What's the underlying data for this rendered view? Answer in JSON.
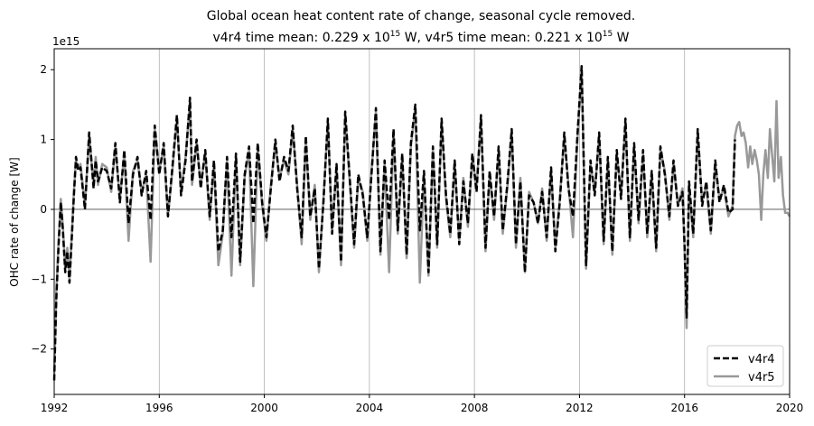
{
  "chart_data": {
    "type": "line",
    "title_line1": "Global ocean heat content rate of change, seasonal cycle removed.",
    "title_line2": {
      "pre": "v4r4 time mean: 0.229 x 10",
      "exp1": "15",
      "mid": " W, v4r5 time mean: 0.221 x 10",
      "exp2": "15",
      "post": " W"
    },
    "ylabel": "OHC rate of change [W]",
    "y_offset_label": "1e15",
    "xlim": [
      1992,
      2020
    ],
    "ylim": [
      -2.65,
      2.3
    ],
    "xticks": [
      1992,
      1996,
      2000,
      2004,
      2008,
      2012,
      2016,
      2020
    ],
    "xtick_labels": [
      "1992",
      "1996",
      "2000",
      "2004",
      "2008",
      "2012",
      "2016",
      "2020"
    ],
    "yticks": [
      -2,
      -1,
      0,
      1,
      2
    ],
    "ytick_labels": [
      "−2",
      "−1",
      "0",
      "1",
      "2"
    ],
    "vertical_grid": true,
    "zero_line": true,
    "legend_position": "bottom-right",
    "series": [
      {
        "name": "v4r4",
        "color": "#000000",
        "style": "dashed",
        "x": [
          1992.0,
          1992.08,
          1992.17,
          1992.25,
          1992.33,
          1992.42,
          1992.5,
          1992.58,
          1992.67,
          1992.75,
          1992.83,
          1992.92,
          1993.0,
          1993.17,
          1993.33,
          1993.5,
          1993.58,
          1993.67,
          1993.83,
          1994.0,
          1994.17,
          1994.33,
          1994.5,
          1994.67,
          1994.83,
          1995.0,
          1995.17,
          1995.33,
          1995.5,
          1995.67,
          1995.83,
          1996.0,
          1996.17,
          1996.33,
          1996.5,
          1996.67,
          1996.83,
          1997.0,
          1997.17,
          1997.25,
          1997.42,
          1997.58,
          1997.75,
          1997.92,
          1998.08,
          1998.25,
          1998.42,
          1998.58,
          1998.75,
          1998.92,
          1999.08,
          1999.25,
          1999.42,
          1999.58,
          1999.75,
          1999.92,
          2000.08,
          2000.25,
          2000.42,
          2000.58,
          2000.75,
          2000.92,
          2001.08,
          2001.25,
          2001.42,
          2001.58,
          2001.75,
          2001.92,
          2002.08,
          2002.25,
          2002.42,
          2002.58,
          2002.75,
          2002.92,
          2003.08,
          2003.25,
          2003.42,
          2003.58,
          2003.75,
          2003.92,
          2004.08,
          2004.25,
          2004.42,
          2004.58,
          2004.75,
          2004.92,
          2005.08,
          2005.25,
          2005.42,
          2005.58,
          2005.75,
          2005.92,
          2006.08,
          2006.25,
          2006.42,
          2006.58,
          2006.75,
          2006.92,
          2007.08,
          2007.25,
          2007.42,
          2007.58,
          2007.75,
          2007.92,
          2008.08,
          2008.25,
          2008.42,
          2008.58,
          2008.75,
          2008.92,
          2009.08,
          2009.25,
          2009.42,
          2009.58,
          2009.75,
          2009.92,
          2010.08,
          2010.25,
          2010.42,
          2010.58,
          2010.75,
          2010.92,
          2011.08,
          2011.25,
          2011.42,
          2011.58,
          2011.75,
          2011.92,
          2012.08,
          2012.25,
          2012.42,
          2012.58,
          2012.75,
          2012.92,
          2013.08,
          2013.25,
          2013.42,
          2013.58,
          2013.75,
          2013.92,
          2014.08,
          2014.25,
          2014.42,
          2014.58,
          2014.75,
          2014.92,
          2015.08,
          2015.25,
          2015.42,
          2015.58,
          2015.75,
          2015.92,
          2016.0,
          2016.08,
          2016.17,
          2016.33,
          2016.5,
          2016.67,
          2016.83,
          2017.0,
          2017.17,
          2017.33,
          2017.5,
          2017.67,
          2017.83,
          2017.92
        ],
        "y": [
          -2.45,
          -1.3,
          -0.5,
          0.1,
          -0.3,
          -0.9,
          -0.6,
          -1.05,
          -0.4,
          0.2,
          0.75,
          0.55,
          0.6,
          0.0,
          1.1,
          0.3,
          0.7,
          0.4,
          0.6,
          0.55,
          0.3,
          0.95,
          0.1,
          0.85,
          -0.2,
          0.5,
          0.75,
          0.2,
          0.55,
          -0.15,
          1.2,
          0.5,
          0.95,
          -0.1,
          0.6,
          1.35,
          0.2,
          0.7,
          1.6,
          0.4,
          1.0,
          0.3,
          0.85,
          -0.1,
          0.7,
          -0.6,
          -0.3,
          0.75,
          -0.4,
          0.8,
          -0.75,
          0.5,
          0.9,
          -0.2,
          0.95,
          0.1,
          -0.4,
          0.3,
          1.0,
          0.4,
          0.75,
          0.55,
          1.2,
          0.3,
          -0.4,
          1.05,
          -0.1,
          0.3,
          -0.85,
          0.1,
          1.3,
          -0.35,
          0.65,
          -0.75,
          1.4,
          0.45,
          -0.5,
          0.5,
          0.2,
          -0.4,
          0.5,
          1.45,
          -0.6,
          0.7,
          -0.15,
          1.15,
          -0.3,
          0.8,
          -0.65,
          0.95,
          1.5,
          -0.3,
          0.55,
          -0.9,
          0.9,
          -0.5,
          1.3,
          0.2,
          -0.35,
          0.7,
          -0.5,
          0.4,
          -0.2,
          0.8,
          0.25,
          1.35,
          -0.55,
          0.55,
          -0.1,
          0.9,
          -0.3,
          0.35,
          1.15,
          -0.5,
          0.4,
          -0.9,
          0.2,
          0.1,
          -0.2,
          0.25,
          -0.4,
          0.6,
          -0.6,
          0.1,
          1.1,
          0.3,
          -0.1,
          1.05,
          2.05,
          -0.8,
          0.7,
          0.2,
          1.1,
          -0.45,
          0.75,
          -0.6,
          0.85,
          0.15,
          1.3,
          -0.4,
          0.95,
          -0.15,
          0.85,
          -0.35,
          0.55,
          -0.55,
          0.9,
          0.5,
          -0.1,
          0.7,
          0.05,
          0.25,
          -0.5,
          -1.55,
          0.4,
          -0.35,
          1.15,
          0.05,
          0.4,
          -0.3,
          0.7,
          0.1,
          0.35,
          -0.05,
          0.0,
          1.0
        ]
      },
      {
        "name": "v4r5",
        "color": "#999999",
        "style": "solid",
        "x": [
          1992.0,
          1992.08,
          1992.17,
          1992.25,
          1992.33,
          1992.42,
          1992.5,
          1992.58,
          1992.67,
          1992.75,
          1992.83,
          1992.92,
          1993.0,
          1993.17,
          1993.33,
          1993.5,
          1993.58,
          1993.67,
          1993.83,
          1994.0,
          1994.17,
          1994.33,
          1994.5,
          1994.67,
          1994.83,
          1995.0,
          1995.17,
          1995.33,
          1995.5,
          1995.67,
          1995.83,
          1996.0,
          1996.17,
          1996.33,
          1996.5,
          1996.67,
          1996.83,
          1997.0,
          1997.17,
          1997.25,
          1997.42,
          1997.58,
          1997.75,
          1997.92,
          1998.08,
          1998.25,
          1998.42,
          1998.58,
          1998.75,
          1998.92,
          1999.08,
          1999.25,
          1999.42,
          1999.58,
          1999.75,
          1999.92,
          2000.08,
          2000.25,
          2000.42,
          2000.58,
          2000.75,
          2000.92,
          2001.08,
          2001.25,
          2001.42,
          2001.58,
          2001.75,
          2001.92,
          2002.08,
          2002.25,
          2002.42,
          2002.58,
          2002.75,
          2002.92,
          2003.08,
          2003.25,
          2003.42,
          2003.58,
          2003.75,
          2003.92,
          2004.08,
          2004.25,
          2004.42,
          2004.58,
          2004.75,
          2004.92,
          2005.08,
          2005.25,
          2005.42,
          2005.58,
          2005.75,
          2005.92,
          2006.08,
          2006.25,
          2006.42,
          2006.58,
          2006.75,
          2006.92,
          2007.08,
          2007.25,
          2007.42,
          2007.58,
          2007.75,
          2007.92,
          2008.08,
          2008.25,
          2008.42,
          2008.58,
          2008.75,
          2008.92,
          2009.08,
          2009.25,
          2009.42,
          2009.58,
          2009.75,
          2009.92,
          2010.08,
          2010.25,
          2010.42,
          2010.58,
          2010.75,
          2010.92,
          2011.08,
          2011.25,
          2011.42,
          2011.58,
          2011.75,
          2011.92,
          2012.08,
          2012.25,
          2012.42,
          2012.58,
          2012.75,
          2012.92,
          2013.08,
          2013.25,
          2013.42,
          2013.58,
          2013.75,
          2013.92,
          2014.08,
          2014.25,
          2014.42,
          2014.58,
          2014.75,
          2014.92,
          2015.08,
          2015.25,
          2015.42,
          2015.58,
          2015.75,
          2015.92,
          2016.0,
          2016.08,
          2016.17,
          2016.33,
          2016.5,
          2016.67,
          2016.83,
          2017.0,
          2017.17,
          2017.33,
          2017.5,
          2017.67,
          2017.83,
          2017.92,
          2018.0,
          2018.08,
          2018.17,
          2018.25,
          2018.33,
          2018.42,
          2018.5,
          2018.58,
          2018.67,
          2018.75,
          2018.83,
          2018.92,
          2019.0,
          2019.08,
          2019.17,
          2019.25,
          2019.33,
          2019.42,
          2019.5,
          2019.58,
          2019.67,
          2019.75,
          2019.83,
          2019.92,
          2020.0
        ],
        "y": [
          -2.35,
          -1.2,
          -0.45,
          0.15,
          -0.25,
          -0.85,
          -0.55,
          -1.0,
          -0.35,
          0.25,
          0.7,
          0.6,
          0.65,
          0.05,
          1.05,
          0.35,
          0.75,
          0.35,
          0.65,
          0.6,
          0.25,
          0.9,
          0.15,
          0.8,
          -0.45,
          0.55,
          0.7,
          0.25,
          0.5,
          -0.75,
          1.15,
          0.55,
          0.9,
          -0.1,
          0.55,
          1.3,
          0.25,
          0.75,
          1.55,
          0.35,
          0.95,
          0.35,
          0.8,
          -0.15,
          0.65,
          -0.8,
          -0.35,
          0.7,
          -0.95,
          0.75,
          -0.8,
          0.45,
          0.85,
          -1.1,
          0.9,
          0.05,
          -0.45,
          0.35,
          0.95,
          0.45,
          0.7,
          0.5,
          1.15,
          0.35,
          -0.5,
          1.0,
          -0.15,
          0.35,
          -0.9,
          0.15,
          1.25,
          -0.3,
          0.6,
          -0.8,
          1.35,
          0.4,
          -0.55,
          0.45,
          0.25,
          -0.45,
          0.55,
          1.4,
          -0.65,
          0.65,
          -0.9,
          1.1,
          -0.35,
          0.75,
          -0.7,
          0.9,
          1.45,
          -1.05,
          0.5,
          -0.95,
          0.85,
          -0.55,
          1.25,
          0.15,
          -0.4,
          0.65,
          -0.45,
          0.45,
          -0.25,
          0.75,
          0.3,
          1.3,
          -0.6,
          0.5,
          -0.15,
          0.85,
          -0.35,
          0.3,
          1.1,
          -0.55,
          0.45,
          -0.9,
          0.25,
          0.1,
          -0.2,
          0.3,
          -0.45,
          0.55,
          -0.55,
          0.15,
          1.05,
          0.35,
          -0.4,
          1.0,
          2.0,
          -0.85,
          0.65,
          0.25,
          1.05,
          -0.5,
          0.7,
          -0.65,
          0.8,
          0.2,
          1.25,
          -0.45,
          0.9,
          -0.2,
          0.8,
          -0.4,
          0.5,
          -0.6,
          0.85,
          0.55,
          -0.15,
          0.65,
          0.05,
          0.3,
          -0.55,
          -1.7,
          0.35,
          -0.4,
          1.1,
          0.1,
          0.35,
          -0.35,
          0.65,
          0.15,
          0.3,
          -0.1,
          0.05,
          1.05,
          1.2,
          1.25,
          1.05,
          1.1,
          0.95,
          0.6,
          0.9,
          0.65,
          0.85,
          0.7,
          0.5,
          -0.15,
          0.5,
          0.85,
          0.45,
          1.15,
          0.8,
          0.4,
          1.55,
          0.45,
          0.75,
          0.2,
          -0.05,
          -0.05,
          -0.1
        ]
      }
    ]
  }
}
